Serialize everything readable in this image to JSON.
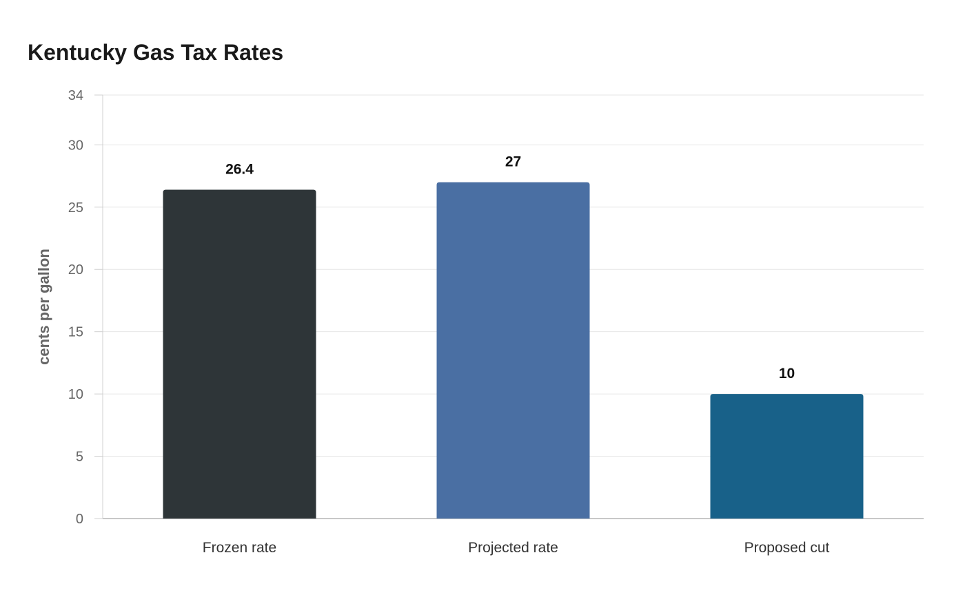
{
  "chart_data": {
    "type": "bar",
    "title": "Kentucky Gas Tax Rates",
    "xlabel": "",
    "ylabel": "cents per gallon",
    "categories": [
      "Frozen rate",
      "Projected rate",
      "Proposed cut"
    ],
    "values": [
      26.4,
      27,
      10
    ],
    "value_labels": [
      "26.4",
      "27",
      "10"
    ],
    "ylim": [
      0,
      34
    ],
    "yticks": [
      0,
      5,
      10,
      15,
      20,
      25,
      30,
      34
    ],
    "grid": true,
    "legend": "none",
    "bar_colors": [
      "#2e3538",
      "#4a6fa3",
      "#186189"
    ]
  }
}
